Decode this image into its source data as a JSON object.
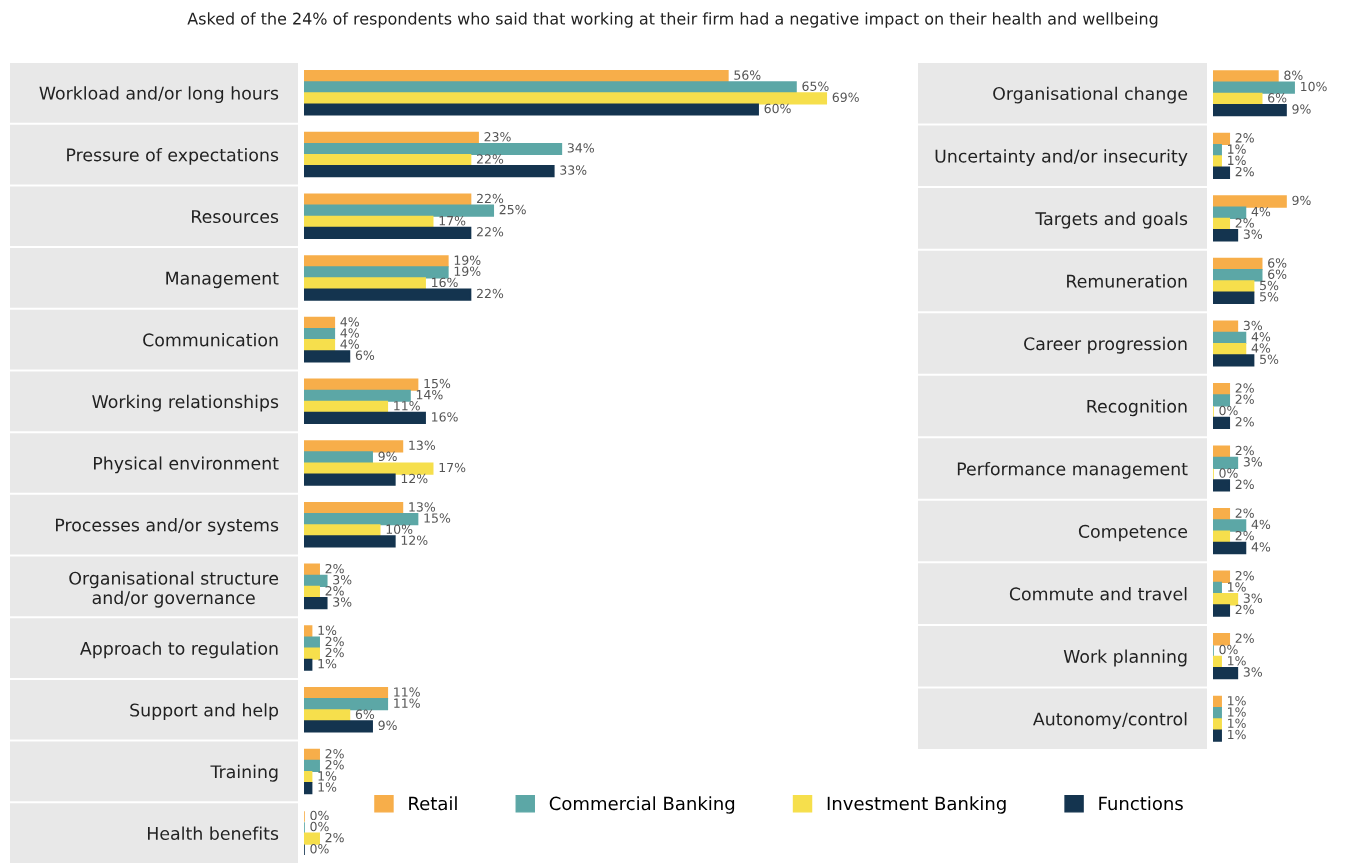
{
  "chart_data": [
    {
      "type": "bar",
      "orientation": "horizontal",
      "title": "Asked of the 24% of respondents who said that working at their firm had a negative impact on their health and wellbeing",
      "categories": [
        "Workload and/or long hours",
        "Pressure of expectations",
        "Resources",
        "Management",
        "Communication",
        "Working relationships",
        "Physical environment",
        "Processes and/or systems",
        "Organisational structure\nand/or governance",
        "Approach to regulation",
        "Support and help",
        "Training",
        "Health benefits"
      ],
      "series": [
        {
          "name": "Retail",
          "color": "#f7ae4a",
          "values": [
            56,
            23,
            22,
            19,
            4,
            15,
            13,
            13,
            2,
            1,
            11,
            2,
            0
          ],
          "value_labels": [
            "56%",
            "23%",
            "22%",
            "19%",
            "4%",
            "15%",
            "13%",
            "13%",
            "2%",
            "1%",
            "11%",
            "2%",
            "0%"
          ]
        },
        {
          "name": "Commercial Banking",
          "color": "#5ca7a6",
          "values": [
            65,
            34,
            25,
            19,
            4,
            14,
            9,
            15,
            3,
            2,
            11,
            2,
            0
          ],
          "value_labels": [
            "65%",
            "34%",
            "25%",
            "19%",
            "4%",
            "14%",
            "9%",
            "15%",
            "3%",
            "2%",
            "11%",
            "2%",
            "0%"
          ]
        },
        {
          "name": "Investment Banking",
          "color": "#f6df4c",
          "values": [
            69,
            22,
            17,
            16,
            4,
            11,
            17,
            10,
            2,
            2,
            6,
            1,
            2
          ],
          "value_labels": [
            "69%",
            "22%",
            "17%",
            "16%",
            "4%",
            "11%",
            "17%",
            "10%",
            "2%",
            "2%",
            "6%",
            "1%",
            "2%"
          ]
        },
        {
          "name": "Functions",
          "color": "#14344f",
          "values": [
            60,
            33,
            22,
            22,
            6,
            16,
            12,
            12,
            3,
            1,
            9,
            1,
            0
          ],
          "value_labels": [
            "60%",
            "33%",
            "22%",
            "22%",
            "6%",
            "16%",
            "12%",
            "12%",
            "3%",
            "1%",
            "9%",
            "1%",
            "0%"
          ]
        }
      ],
      "tick_labels": "y",
      "legend": "bottom right"
    },
    {
      "type": "bar",
      "orientation": "horizontal",
      "categories": [
        "Organisational change",
        "Uncertainty and/or insecurity",
        "Targets and goals",
        "Remuneration",
        "Career progression",
        "Recognition",
        "Performance management",
        "Competence",
        "Commute and travel",
        "Work planning",
        "Autonomy/control"
      ],
      "series": [
        {
          "color": "#f7ae4a",
          "values": [
            8,
            2,
            9,
            6,
            3,
            2,
            2,
            2,
            2,
            2,
            1
          ],
          "value_labels": [
            "8%",
            "2%",
            "9%",
            "6%",
            "3%",
            "2%",
            "2%",
            "2%",
            "2%",
            "2%",
            "1%"
          ]
        },
        {
          "color": "#5ca7a6",
          "values": [
            10,
            1,
            4,
            6,
            4,
            2,
            3,
            4,
            1,
            0,
            1
          ],
          "value_labels": [
            "10%",
            "1%",
            "4%",
            "6%",
            "4%",
            "2%",
            "3%",
            "4%",
            "1%",
            "0%",
            "1%"
          ]
        },
        {
          "color": "#f6df4c",
          "values": [
            6,
            1,
            2,
            5,
            4,
            0,
            0,
            2,
            3,
            1,
            1
          ],
          "value_labels": [
            "6%",
            "1%",
            "2%",
            "5%",
            "4%",
            "0%",
            "0%",
            "2%",
            "3%",
            "1%",
            "1%"
          ]
        },
        {
          "color": "#14344f",
          "values": [
            9,
            2,
            3,
            5,
            5,
            2,
            2,
            4,
            2,
            3,
            1
          ],
          "value_labels": [
            "9%",
            "2%",
            "3%",
            "5%",
            "5%",
            "2%",
            "2%",
            "4%",
            "2%",
            "3%",
            "1%"
          ]
        }
      ],
      "tick_labels": "y"
    }
  ]
}
